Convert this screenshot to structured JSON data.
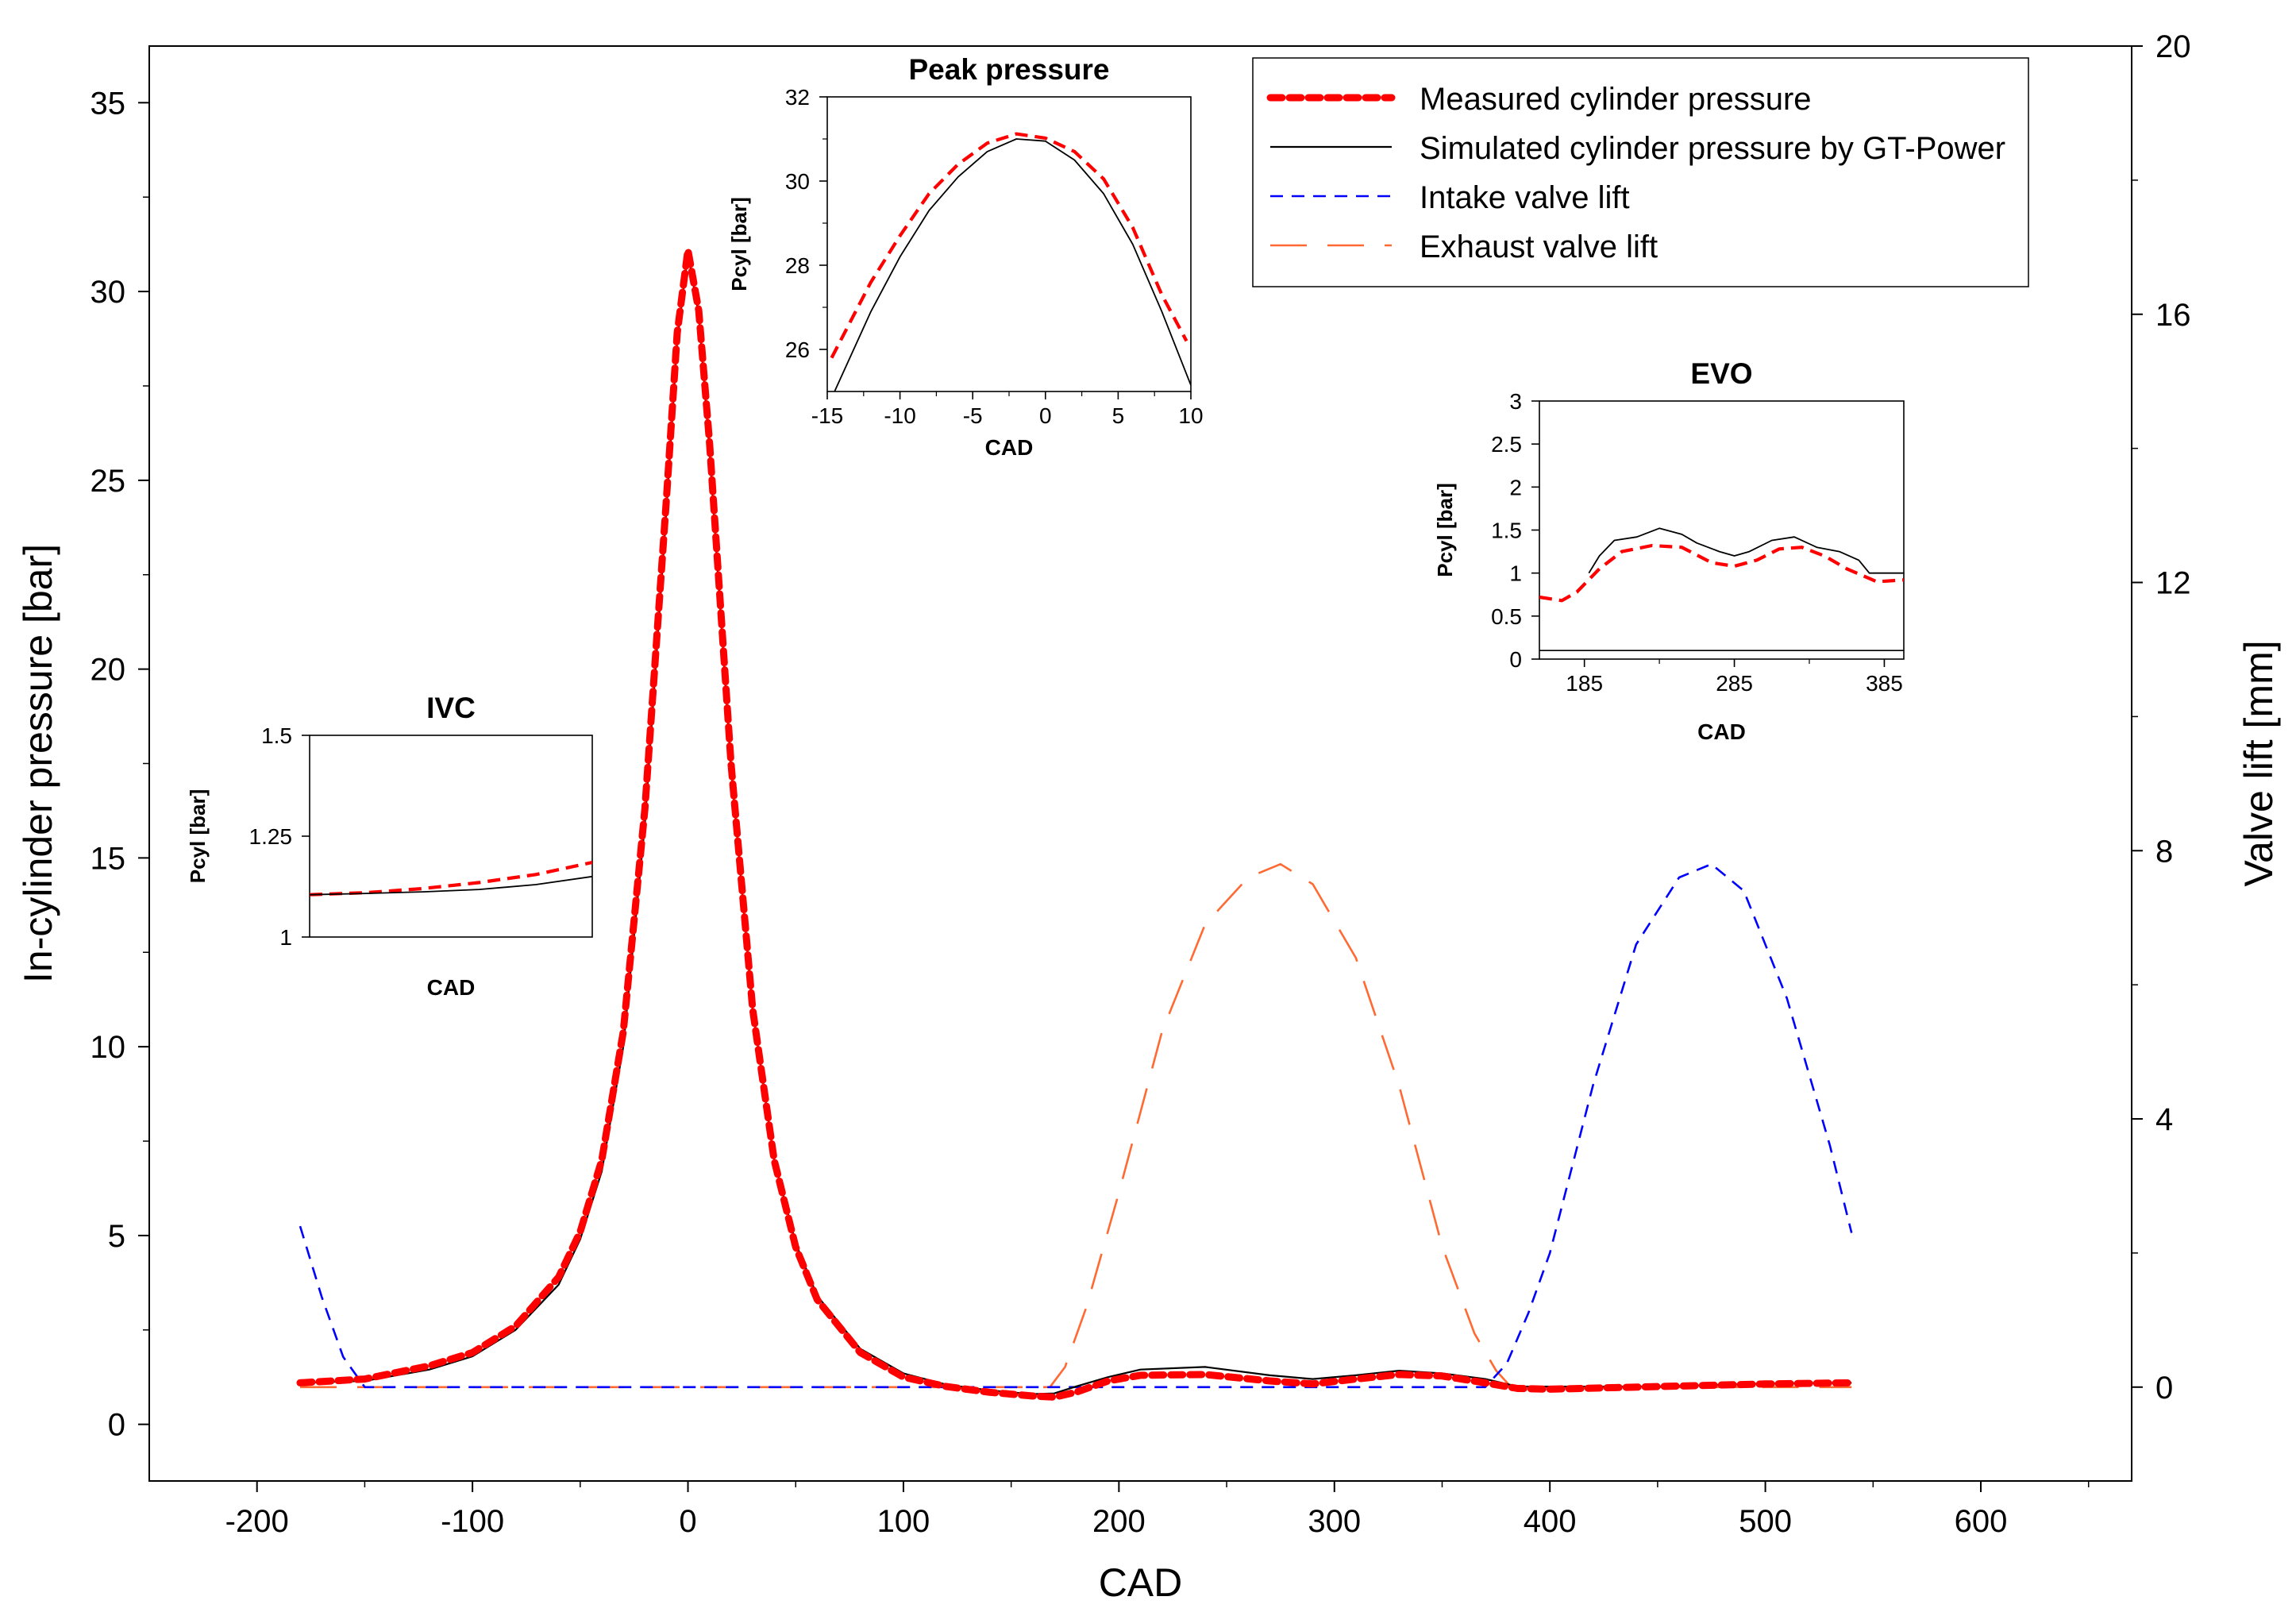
{
  "chart_data": [
    {
      "type": "line",
      "id": "main",
      "xlabel": "CAD",
      "ylabel": "In-cylinder pressure [bar]",
      "y2label": "Valve lift [mm]",
      "xlim": [
        -250,
        670
      ],
      "ylim": [
        -1.5,
        36.5
      ],
      "y2lim": [
        -1.4,
        20
      ],
      "xticks": [
        -200,
        -100,
        0,
        100,
        200,
        300,
        400,
        500,
        600
      ],
      "yticks": [
        0,
        5,
        10,
        15,
        20,
        25,
        30,
        35
      ],
      "y2ticks": [
        0,
        4,
        8,
        12,
        16,
        20
      ],
      "legend": {
        "position": "top-right",
        "entries": [
          "Measured cylinder pressure",
          "Simulated cylinder pressure by GT-Power",
          "Intake valve lift",
          "Exhaust valve lift"
        ]
      },
      "series": [
        {
          "name": "Measured cylinder pressure",
          "axis": "left",
          "color": "#ff0000",
          "style": "thick-dotted",
          "x": [
            -180,
            -150,
            -120,
            -100,
            -80,
            -60,
            -50,
            -40,
            -30,
            -20,
            -10,
            -5,
            0,
            5,
            10,
            20,
            30,
            40,
            50,
            60,
            80,
            100,
            120,
            140,
            160,
            170,
            180,
            195,
            210,
            240,
            270,
            290,
            310,
            330,
            350,
            370,
            385,
            400,
            450,
            500,
            540
          ],
          "values": [
            1.1,
            1.2,
            1.55,
            1.9,
            2.6,
            3.9,
            5.1,
            7.0,
            10.4,
            16.3,
            24.5,
            28.9,
            31.1,
            29.5,
            26.0,
            17.5,
            11.0,
            7.0,
            4.7,
            3.3,
            1.9,
            1.25,
            1.0,
            0.85,
            0.75,
            0.72,
            0.85,
            1.15,
            1.3,
            1.32,
            1.15,
            1.07,
            1.2,
            1.32,
            1.28,
            1.1,
            0.95,
            0.93,
            1.0,
            1.07,
            1.1
          ]
        },
        {
          "name": "Simulated cylinder pressure by GT-Power",
          "axis": "left",
          "color": "#000000",
          "style": "solid-thin",
          "x": [
            -180,
            -150,
            -120,
            -100,
            -80,
            -60,
            -50,
            -40,
            -30,
            -20,
            -10,
            -5,
            0,
            5,
            10,
            20,
            30,
            40,
            50,
            60,
            80,
            100,
            120,
            140,
            160,
            170,
            180,
            195,
            210,
            240,
            270,
            290,
            310,
            330,
            350,
            370,
            385,
            400,
            450,
            500,
            540
          ],
          "values": [
            1.1,
            1.15,
            1.45,
            1.8,
            2.5,
            3.7,
            4.9,
            6.7,
            10.0,
            15.9,
            24.2,
            28.7,
            31.0,
            29.4,
            25.8,
            17.4,
            11.0,
            7.0,
            4.8,
            3.4,
            2.0,
            1.35,
            1.05,
            0.9,
            0.8,
            0.82,
            1.0,
            1.25,
            1.45,
            1.52,
            1.3,
            1.2,
            1.3,
            1.42,
            1.35,
            1.2,
            1.0,
            1.0,
            1.0,
            1.08,
            1.1
          ]
        },
        {
          "name": "Intake valve lift",
          "axis": "right",
          "color": "#0000ff",
          "style": "short-dash",
          "x": [
            -180,
            -170,
            -160,
            -150,
            370,
            380,
            390,
            400,
            420,
            440,
            460,
            475,
            490,
            510,
            530,
            540
          ],
          "values": [
            2.4,
            1.35,
            0.45,
            0.0,
            0.0,
            0.35,
            1.1,
            2.0,
            4.5,
            6.6,
            7.6,
            7.8,
            7.4,
            5.8,
            3.6,
            2.3
          ]
        },
        {
          "name": "Exhaust valve lift",
          "axis": "right",
          "color": "#ff6a33",
          "style": "long-dash",
          "x": [
            -180,
            168,
            175,
            185,
            200,
            220,
            240,
            260,
            275,
            290,
            310,
            330,
            350,
            365,
            375,
            382,
            540
          ],
          "values": [
            0.0,
            0.0,
            0.3,
            1.2,
            2.9,
            5.3,
            6.9,
            7.6,
            7.8,
            7.5,
            6.4,
            4.5,
            2.1,
            0.8,
            0.25,
            0.0,
            0.0
          ]
        }
      ]
    },
    {
      "type": "line",
      "id": "inset-peak",
      "title": "Peak pressure",
      "xlabel": "CAD",
      "ylabel": "Pcyl [bar]",
      "xlim": [
        -15,
        10
      ],
      "ylim": [
        25,
        32
      ],
      "xticks": [
        -15,
        -10,
        -5,
        0,
        5,
        10
      ],
      "yticks": [
        26,
        28,
        30,
        32
      ],
      "series": [
        {
          "name": "Measured cylinder pressure",
          "color": "#ff0000",
          "x": [
            -14.7,
            -12,
            -10,
            -8,
            -6,
            -4,
            -2,
            0,
            2,
            4,
            6,
            8,
            9.7
          ],
          "values": [
            25.8,
            27.6,
            28.7,
            29.7,
            30.4,
            30.9,
            31.12,
            31.02,
            30.7,
            30.05,
            28.9,
            27.3,
            26.2
          ]
        },
        {
          "name": "Simulated cylinder pressure by GT-Power",
          "color": "#000000",
          "x": [
            -14.5,
            -12,
            -10,
            -8,
            -6,
            -4,
            -2,
            0,
            2,
            4,
            6,
            8,
            10
          ],
          "values": [
            25.0,
            26.9,
            28.2,
            29.3,
            30.1,
            30.7,
            31.0,
            30.95,
            30.5,
            29.7,
            28.5,
            26.9,
            25.15
          ]
        }
      ]
    },
    {
      "type": "line",
      "id": "inset-evo",
      "title": "EVO",
      "xlabel": "CAD",
      "ylabel": "Pcyl [bar]",
      "xlim": [
        155,
        398
      ],
      "ylim": [
        0,
        3
      ],
      "xticks": [
        185,
        285,
        385
      ],
      "yticks": [
        0,
        0.5,
        1,
        1.5,
        2,
        2.5,
        3
      ],
      "series": [
        {
          "name": "Measured cylinder pressure",
          "color": "#ff0000",
          "x": [
            155,
            170,
            180,
            195,
            210,
            230,
            250,
            270,
            285,
            300,
            315,
            330,
            345,
            360,
            380,
            398
          ],
          "values": [
            0.72,
            0.68,
            0.78,
            1.05,
            1.25,
            1.32,
            1.3,
            1.12,
            1.08,
            1.15,
            1.28,
            1.3,
            1.2,
            1.05,
            0.9,
            0.92
          ]
        },
        {
          "name": "Simulated cylinder pressure by GT-Power",
          "color": "#000000",
          "x": [
            188,
            195,
            205,
            220,
            235,
            250,
            260,
            275,
            285,
            295,
            310,
            325,
            340,
            355,
            368,
            375,
            398
          ],
          "values": [
            1.0,
            1.2,
            1.38,
            1.42,
            1.52,
            1.45,
            1.35,
            1.25,
            1.2,
            1.25,
            1.38,
            1.42,
            1.3,
            1.25,
            1.15,
            1.0,
            1.0
          ]
        }
      ]
    },
    {
      "type": "line",
      "id": "inset-ivc",
      "title": "IVC",
      "xlabel": "CAD",
      "ylabel": "Pcyl [bar]",
      "xlim": [
        0,
        1
      ],
      "ylim": [
        1,
        1.5
      ],
      "yticks": [
        1,
        1.25,
        1.5
      ],
      "ytick_labels": [
        "1",
        "1.25",
        "1.5"
      ],
      "series": [
        {
          "name": "Measured cylinder pressure",
          "color": "#ff0000",
          "x": [
            0,
            0.2,
            0.4,
            0.6,
            0.8,
            1.0
          ],
          "values": [
            1.105,
            1.11,
            1.12,
            1.135,
            1.155,
            1.185
          ]
        },
        {
          "name": "Simulated cylinder pressure by GT-Power",
          "color": "#000000",
          "x": [
            0,
            0.2,
            0.4,
            0.6,
            0.8,
            1.0
          ],
          "values": [
            1.105,
            1.108,
            1.112,
            1.118,
            1.13,
            1.15
          ]
        }
      ]
    }
  ]
}
